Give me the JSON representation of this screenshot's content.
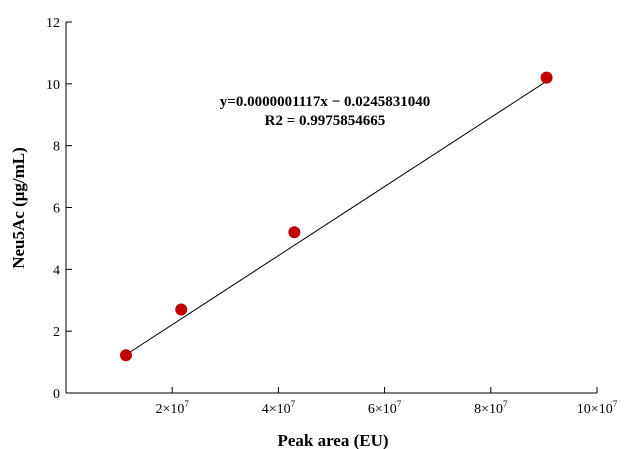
{
  "chart_data": {
    "type": "scatter",
    "xlabel": "Peak area (EU)",
    "ylabel": "Neu5Ac (μg/mL)",
    "xlim": [
      0,
      100000000
    ],
    "ylim": [
      0,
      12
    ],
    "x_ticks": [
      {
        "value": 20000000,
        "base": "2×10",
        "exp": "7"
      },
      {
        "value": 40000000,
        "base": "4×10",
        "exp": "7"
      },
      {
        "value": 60000000,
        "base": "6×10",
        "exp": "7"
      },
      {
        "value": 80000000,
        "base": "8×10",
        "exp": "7"
      },
      {
        "value": 100000000,
        "base": "10×10",
        "exp": "7"
      }
    ],
    "y_ticks": [
      0,
      2,
      4,
      6,
      8,
      10,
      12
    ],
    "points": [
      {
        "x": 11300000,
        "y": 1.22
      },
      {
        "x": 21700000,
        "y": 2.7
      },
      {
        "x": 43000000,
        "y": 5.2
      },
      {
        "x": 90500000,
        "y": 10.2
      }
    ],
    "fit_line": {
      "slope": 1.117e-07,
      "intercept": -0.024583104,
      "x_range": [
        11300000,
        90500000
      ]
    },
    "annotations": {
      "equation": "y=0.0000001117x − 0.0245831040",
      "r2": "R2 = 0.9975854665"
    },
    "marker_color": "#c00000",
    "line_color": "#000000",
    "grid": false
  }
}
